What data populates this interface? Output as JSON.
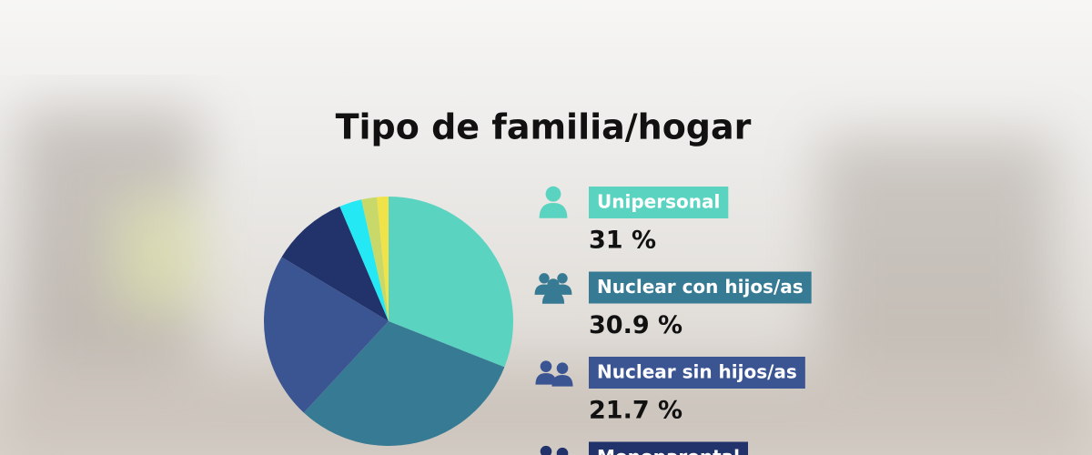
{
  "chart_data": {
    "type": "pie",
    "title": "Tipo de familia/hogar",
    "categories": [
      "Unipersonal",
      "Nuclear con hijos/as",
      "Nuclear sin hijos/as",
      "Monoparental",
      null,
      null,
      null
    ],
    "values": [
      31,
      30.9,
      21.7,
      10,
      2.9,
      2,
      1.5
    ],
    "value_labels": [
      "31 %",
      "30.9 %",
      "21.7 %",
      null,
      null,
      null,
      null
    ],
    "colors": [
      "#5ad3c0",
      "#377a93",
      "#3b5593",
      "#22336b",
      "#25e8f5",
      "#c8d96a",
      "#f0e34a"
    ]
  }
}
